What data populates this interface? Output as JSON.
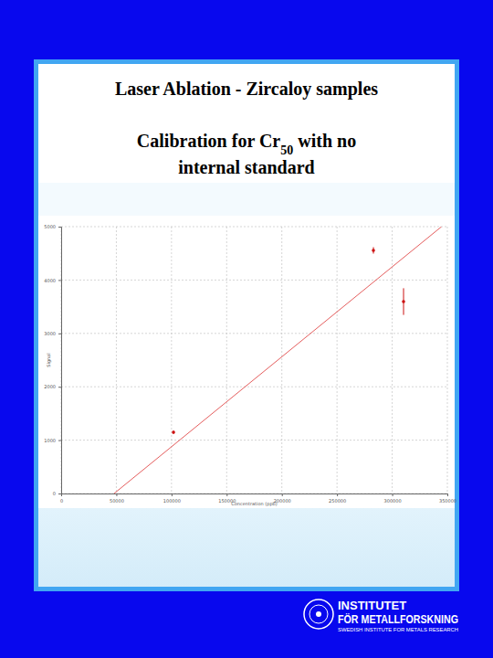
{
  "chart_data": {
    "type": "scatter",
    "title": "Laser Ablation - Zircaloy samples",
    "subtitle": [
      "Calibration for Cr50 with no",
      "internal standard"
    ],
    "x_label": "Concentration (ppb)",
    "y_label": "Signal",
    "xlim": [
      0,
      350000
    ],
    "xticks": [
      0,
      50000,
      100000,
      150000,
      200000,
      250000,
      300000,
      350000
    ],
    "ylim": [
      0,
      5000
    ],
    "yticks": [
      0,
      1000,
      2000,
      3000,
      4000,
      5000
    ],
    "grid": true,
    "series": [
      {
        "type": "scatter",
        "color": "#cc1111",
        "marker": "circle",
        "x": [
          101800,
          283000,
          310300
        ],
        "values": [
          1147,
          4555,
          3596
        ],
        "errors": [
          30,
          60,
          250
        ]
      },
      {
        "type": "line",
        "color": "#dd3333",
        "line_style": "solid",
        "x": [
          48000,
          344700
        ],
        "values": [
          0,
          5000
        ]
      }
    ]
  },
  "page": {
    "logo": [
      "INSTITUTET",
      "FÖR METALLFORSKNING",
      "SWEDISH INSTITUTE FOR METALS RESEARCH"
    ]
  }
}
